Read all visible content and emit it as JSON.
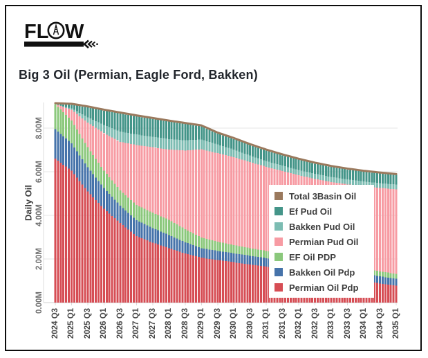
{
  "brand": {
    "name": "FLOW",
    "left_letters": "FL",
    "right_letter": "W"
  },
  "header": {
    "title": "Big 3 Oil (Permian, Eagle Ford, Bakken)"
  },
  "y_axis": {
    "title": "Daily Oil",
    "ticks": [
      {
        "label": "0.00M",
        "value": 0
      },
      {
        "label": "2.00M",
        "value": 2
      },
      {
        "label": "4.00M",
        "value": 4
      },
      {
        "label": "6.00M",
        "value": 6
      },
      {
        "label": "8.00M",
        "value": 8
      }
    ]
  },
  "legend": {
    "position": "inside-right",
    "items": [
      {
        "label": "Total 3Basin Oil",
        "color": "#9a795d"
      },
      {
        "label": "Ef Pud Oil",
        "color": "#449589"
      },
      {
        "label": "Bakken Pud Oil",
        "color": "#7cbcb2"
      },
      {
        "label": "Permian Pud Oil",
        "color": "#f79ba3"
      },
      {
        "label": "EF Oil PDP",
        "color": "#8bc87c"
      },
      {
        "label": "Bakken Oil Pdp",
        "color": "#4673aa"
      },
      {
        "label": "Permian Oil Pdp",
        "color": "#d64d54"
      }
    ]
  },
  "chart_data": {
    "type": "bar",
    "stacked": true,
    "title": "Big 3 Oil (Permian, Eagle Ford, Bakken)",
    "xlabel": "",
    "ylabel": "Daily Oil",
    "unit": "million bbl/d",
    "ylim": [
      0,
      9.45
    ],
    "grid": true,
    "bar_frequency": "monthly, interpolated between half-year anchors",
    "anchor_labels": [
      "2024 Q3",
      "2025 Q1",
      "2025 Q3",
      "2026 Q1",
      "2026 Q3",
      "2027 Q1",
      "2027 Q3",
      "2028 Q1",
      "2028 Q3",
      "2029 Q1",
      "2029 Q3",
      "2030 Q1",
      "2030 Q3",
      "2031 Q1",
      "2031 Q3",
      "2032 Q1",
      "2032 Q3",
      "2033 Q1",
      "2033 Q3",
      "2034 Q1",
      "2034 Q3",
      "2035 Q1"
    ],
    "series": [
      {
        "name": "Permian Oil Pdp",
        "color": "#d64d54",
        "values": [
          6.6,
          6.05,
          5.1,
          4.3,
          3.65,
          3.05,
          2.75,
          2.5,
          2.25,
          2.06,
          1.95,
          1.85,
          1.75,
          1.65,
          1.55,
          1.45,
          1.35,
          1.25,
          1.12,
          1.02,
          0.88,
          0.78
        ]
      },
      {
        "name": "Bakken Oil Pdp",
        "color": "#4673aa",
        "values": [
          1.35,
          1.25,
          1.1,
          0.95,
          0.8,
          0.73,
          0.67,
          0.6,
          0.52,
          0.44,
          0.42,
          0.41,
          0.4,
          0.39,
          0.38,
          0.37,
          0.36,
          0.35,
          0.34,
          0.33,
          0.32,
          0.32
        ]
      },
      {
        "name": "EF Oil PDP",
        "color": "#8bc87c",
        "values": [
          1.15,
          1.05,
          0.92,
          0.8,
          0.7,
          0.7,
          0.7,
          0.7,
          0.6,
          0.48,
          0.42,
          0.38,
          0.35,
          0.33,
          0.31,
          0.29,
          0.27,
          0.26,
          0.25,
          0.24,
          0.23,
          0.22
        ]
      },
      {
        "name": "Permian Pud Oil",
        "color": "#f79ba3",
        "values": [
          0.0,
          0.49,
          1.13,
          1.72,
          2.22,
          2.75,
          3.0,
          3.22,
          3.6,
          4.05,
          4.06,
          4.03,
          3.94,
          3.86,
          3.79,
          3.73,
          3.69,
          3.67,
          3.71,
          3.74,
          3.83,
          3.87
        ]
      },
      {
        "name": "Bakken Pud Oil",
        "color": "#7cbcb2",
        "values": [
          0.0,
          0.07,
          0.25,
          0.38,
          0.47,
          0.48,
          0.48,
          0.48,
          0.47,
          0.45,
          0.4,
          0.35,
          0.3,
          0.26,
          0.25,
          0.24,
          0.24,
          0.23,
          0.23,
          0.22,
          0.22,
          0.22
        ]
      },
      {
        "name": "Ef Pud Oil",
        "color": "#449589",
        "values": [
          0.0,
          0.16,
          0.45,
          0.65,
          0.83,
          0.83,
          0.82,
          0.8,
          0.75,
          0.6,
          0.5,
          0.48,
          0.48,
          0.48,
          0.47,
          0.47,
          0.46,
          0.46,
          0.45,
          0.45,
          0.44,
          0.44
        ]
      }
    ],
    "line_series": {
      "name": "Total 3Basin Oil",
      "color": "#9a795d",
      "values": [
        9.1,
        9.07,
        8.95,
        8.8,
        8.67,
        8.54,
        8.42,
        8.3,
        8.19,
        8.08,
        7.75,
        7.5,
        7.22,
        6.97,
        6.75,
        6.55,
        6.37,
        6.22,
        6.1,
        6.0,
        5.92,
        5.85
      ]
    }
  }
}
